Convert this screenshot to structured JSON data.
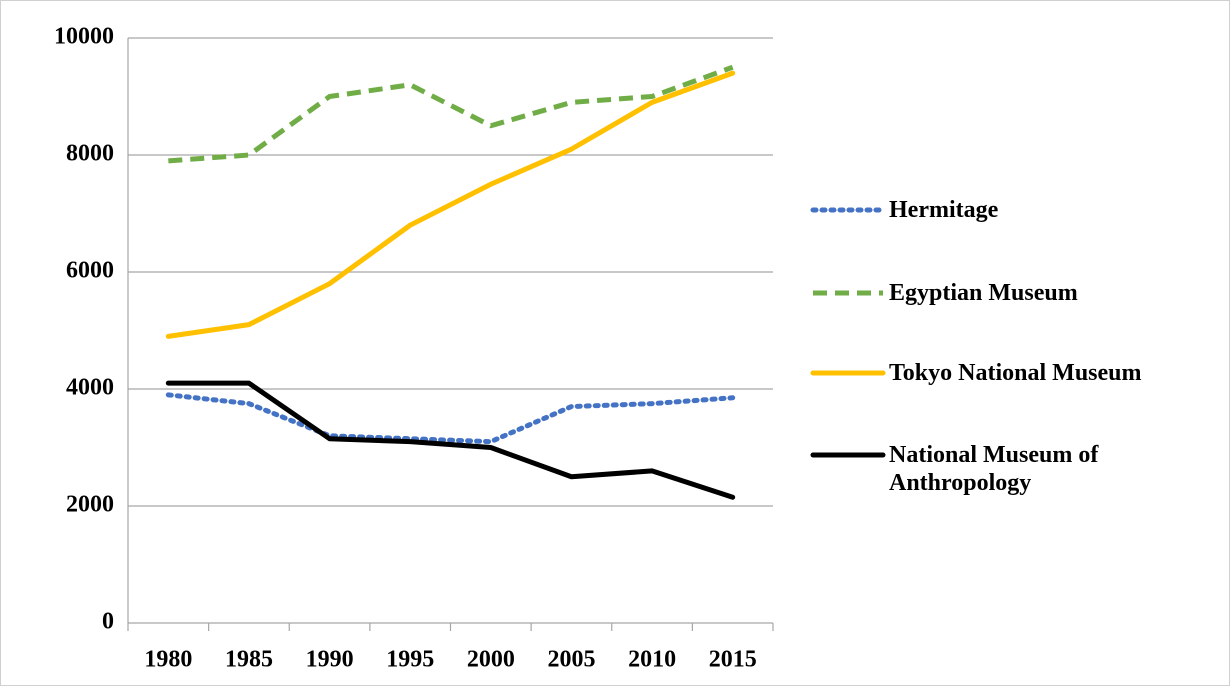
{
  "chart_data": {
    "type": "line",
    "categories": [
      "1980",
      "1985",
      "1990",
      "1995",
      "2000",
      "2005",
      "2010",
      "2015"
    ],
    "series": [
      {
        "name": "Hermitage",
        "color": "#4472c4",
        "style": "dotted",
        "values": [
          3900,
          3750,
          3200,
          3150,
          3100,
          3700,
          3750,
          3850
        ]
      },
      {
        "name": "Egyptian Museum",
        "color": "#70ad47",
        "style": "dashed",
        "values": [
          7900,
          8000,
          9000,
          9200,
          8500,
          8900,
          9000,
          9500
        ]
      },
      {
        "name": "Tokyo National Museum",
        "color": "#ffc000",
        "style": "solid",
        "values": [
          4900,
          5100,
          5800,
          6800,
          7500,
          8100,
          8900,
          9400
        ]
      },
      {
        "name": "National Museum of Anthropology",
        "color": "#000000",
        "style": "solid",
        "values": [
          4100,
          4100,
          3150,
          3100,
          3000,
          2500,
          2600,
          2150
        ]
      }
    ],
    "ylim": [
      0,
      10000
    ],
    "yticks": [
      0,
      2000,
      4000,
      6000,
      8000,
      10000
    ],
    "grid": true,
    "legend": "right"
  }
}
